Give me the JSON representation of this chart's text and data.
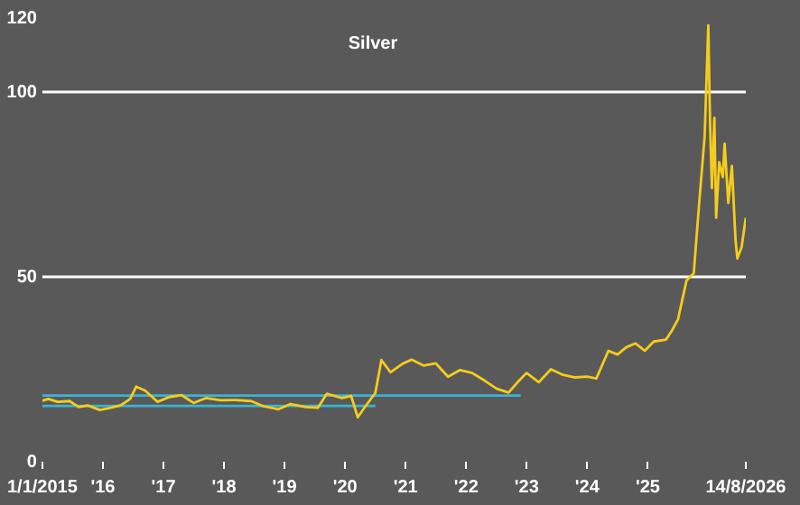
{
  "chart_data": {
    "type": "line",
    "title": "Silver",
    "xlim": [
      2015,
      2026.62
    ],
    "xticks": [
      {
        "value": 2015,
        "label": "1/1/2015"
      },
      {
        "value": 2016,
        "label": "'16"
      },
      {
        "value": 2017,
        "label": "'17"
      },
      {
        "value": 2018,
        "label": "'18"
      },
      {
        "value": 2019,
        "label": "'19"
      },
      {
        "value": 2020,
        "label": "'20"
      },
      {
        "value": 2021,
        "label": "'21"
      },
      {
        "value": 2022,
        "label": "'22"
      },
      {
        "value": 2023,
        "label": "'23"
      },
      {
        "value": 2024,
        "label": "'24"
      },
      {
        "value": 2025,
        "label": "'25"
      },
      {
        "value": 2026.62,
        "label": "14/8/2026"
      }
    ],
    "ylim": [
      0,
      120
    ],
    "yticks": [
      0,
      50,
      100,
      120
    ],
    "grid": false,
    "legend": false,
    "marker": "none",
    "line_style": "solid",
    "ref_lines": [
      {
        "axis": "y",
        "value": 50,
        "color": "#ffffff"
      },
      {
        "axis": "y",
        "value": 100,
        "color": "#ffffff"
      }
    ],
    "series": [
      {
        "color": "#f5cc1c",
        "x": [
          2015,
          2015.1,
          2015.25,
          2015.45,
          2015.6,
          2015.75,
          2015.95,
          2016.1,
          2016.3,
          2016.45,
          2016.55,
          2016.7,
          2016.9,
          2017.1,
          2017.3,
          2017.5,
          2017.7,
          2017.95,
          2018.2,
          2018.45,
          2018.65,
          2018.9,
          2019.1,
          2019.35,
          2019.55,
          2019.7,
          2019.95,
          2020.1,
          2020.21,
          2020.35,
          2020.5,
          2020.6,
          2020.75,
          2020.95,
          2021.1,
          2021.3,
          2021.5,
          2021.7,
          2021.9,
          2022.1,
          2022.3,
          2022.5,
          2022.7,
          2022.85,
          2023.0,
          2023.2,
          2023.4,
          2023.6,
          2023.8,
          2024.0,
          2024.15,
          2024.35,
          2024.5,
          2024.65,
          2024.8,
          2024.95,
          2025.1,
          2025.3,
          2025.4,
          2025.5,
          2025.64,
          2025.76,
          2025.85,
          2025.94,
          2026.0,
          2026.03,
          2026.06,
          2026.1,
          2026.13,
          2026.18,
          2026.24,
          2026.27,
          2026.33,
          2026.39,
          2026.45,
          2026.48,
          2026.55,
          2026.62
        ],
        "values": [
          16.5,
          17.0,
          16.2,
          16.4,
          14.8,
          15.2,
          14.0,
          14.5,
          15.3,
          17.0,
          20.3,
          19.2,
          16.2,
          17.5,
          18.0,
          15.9,
          17.2,
          16.6,
          16.7,
          16.4,
          15.0,
          14.2,
          15.6,
          14.8,
          14.6,
          18.4,
          17.2,
          17.8,
          12.0,
          15.3,
          18.6,
          27.5,
          24.2,
          26.5,
          27.6,
          26.0,
          26.6,
          23.0,
          24.8,
          24.0,
          22.0,
          19.8,
          18.7,
          21.5,
          24.0,
          21.5,
          25.0,
          23.5,
          22.8,
          23.0,
          22.5,
          30.0,
          29.0,
          31.0,
          32.0,
          30.0,
          32.5,
          33.0,
          35.5,
          38.5,
          49.0,
          51.0,
          70.0,
          88.0,
          118.0,
          91.0,
          74.0,
          93.0,
          66.0,
          81.0,
          77.0,
          86.0,
          70.0,
          80.0,
          60.0,
          55.0,
          58.0,
          66.0
        ]
      },
      {
        "color": "#3ab4d4",
        "x": [
          2015,
          2022.9
        ],
        "values": [
          17.9,
          17.9
        ]
      },
      {
        "color": "#3ab4d4",
        "x": [
          2015,
          2020.5
        ],
        "values": [
          15.1,
          15.1
        ]
      }
    ]
  }
}
